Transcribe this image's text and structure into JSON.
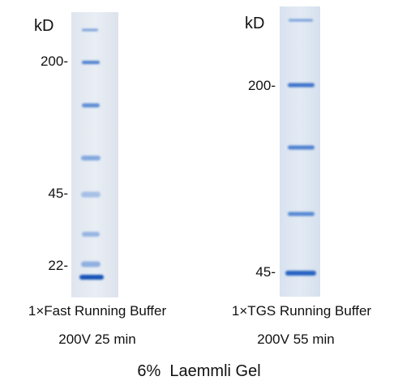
{
  "left_lane": {
    "unit": "kD",
    "markers": [
      "200-",
      "45-",
      "22-"
    ],
    "buffer": "1×Fast Running Buffer",
    "condition": "200V 25 min"
  },
  "right_lane": {
    "unit": "kD",
    "markers": [
      "200-",
      "45-"
    ],
    "buffer": "1×TGS Running Buffer",
    "condition": "200V 55 min"
  },
  "title": "6%  Laemmli Gel"
}
